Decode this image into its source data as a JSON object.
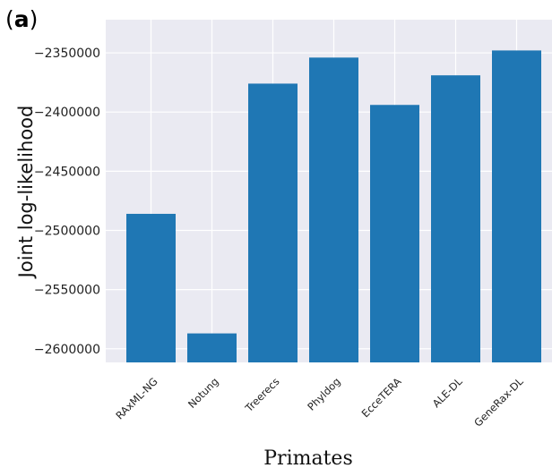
{
  "panel_label": {
    "open": "(",
    "letter": "a",
    "close": ")"
  },
  "chart_data": {
    "type": "bar",
    "categories": [
      "RAxML-NG",
      "Notung",
      "Treerecs",
      "Phyldog",
      "EcceTERA",
      "ALE-DL",
      "GeneRax-DL"
    ],
    "values": [
      -2486000,
      -2587000,
      -2376000,
      -2354000,
      -2394000,
      -2369000,
      -2348000
    ],
    "xlabel": "Primates",
    "ylabel": "Joint log-likelihood",
    "ylim": [
      -2611500,
      -2322000
    ],
    "yticks": [
      -2350000,
      -2400000,
      -2450000,
      -2500000,
      -2550000,
      -2600000
    ],
    "ytick_labels": [
      "−2350000",
      "−2400000",
      "−2450000",
      "−2500000",
      "−2550000",
      "−2600000"
    ],
    "grid": true,
    "bar_color": "#1f77b4",
    "plot_background": "#eaeaf2",
    "grid_color": "#ffffff"
  }
}
